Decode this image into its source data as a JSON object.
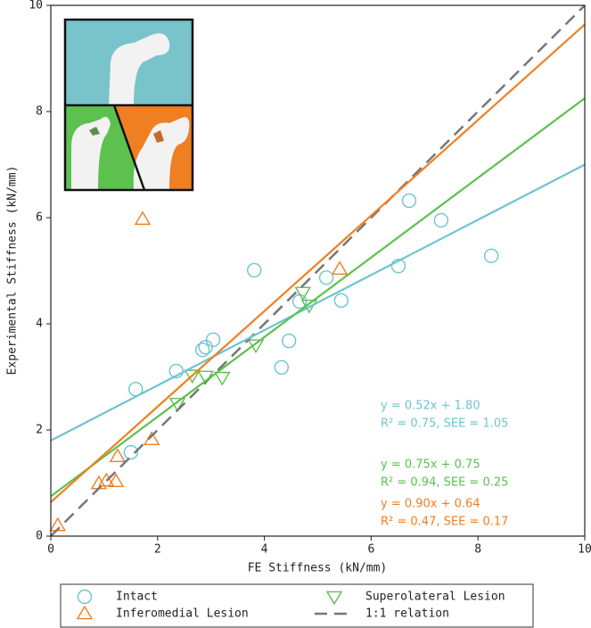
{
  "chart_data": {
    "type": "scatter",
    "xlabel": "FE Stiffness (kN/mm)",
    "ylabel": "Experimental Stiffness (kN/mm)",
    "xlim": [
      0,
      10
    ],
    "ylim": [
      0,
      10
    ],
    "xticks": [
      0,
      2,
      4,
      6,
      8,
      10
    ],
    "yticks": [
      0,
      2,
      4,
      6,
      8,
      10
    ],
    "series": [
      {
        "name": "Intact",
        "color": "#6cc5d0",
        "marker": "circle",
        "x": [
          1.5,
          1.59,
          2.35,
          2.84,
          2.9,
          3.04,
          3.81,
          4.32,
          4.46,
          4.66,
          5.16,
          5.44,
          6.51,
          6.71,
          7.31,
          8.25
        ],
        "values": [
          1.58,
          2.77,
          3.11,
          3.51,
          3.56,
          3.7,
          5.01,
          3.18,
          3.68,
          4.42,
          4.87,
          4.44,
          5.09,
          6.32,
          5.95,
          5.28
        ],
        "fit": {
          "x": [
            0,
            10
          ],
          "values": [
            1.8,
            7.0
          ]
        }
      },
      {
        "name": "Superolateral Lesion",
        "color": "#5cc14f",
        "marker": "triangle-down",
        "x": [
          2.37,
          2.65,
          2.9,
          3.21,
          3.84,
          4.72,
          4.84
        ],
        "values": [
          2.5,
          3.03,
          3.01,
          2.99,
          3.6,
          4.59,
          4.35
        ],
        "fit": {
          "x": [
            0,
            10
          ],
          "values": [
            0.75,
            8.25
          ]
        }
      },
      {
        "name": "Inferomedial Lesion",
        "color": "#f07f22",
        "marker": "triangle-up",
        "x": [
          0.13,
          0.9,
          1.04,
          1.22,
          1.25,
          1.89,
          1.72,
          5.41
        ],
        "values": [
          0.2,
          0.99,
          1.04,
          1.03,
          1.5,
          1.82,
          5.97,
          5.03
        ],
        "fit": {
          "x": [
            0,
            10
          ],
          "values": [
            0.64,
            9.64
          ]
        }
      }
    ],
    "reference": {
      "name": "1:1 relation",
      "color": "#777777",
      "dashed": true,
      "x": [
        0,
        10
      ],
      "values": [
        0,
        10
      ]
    },
    "annotations": [
      {
        "text": "y = 0.52x + 1.80",
        "color": "#6cc5d0"
      },
      {
        "text": "R² = 0.75,  SEE = 1.05",
        "color": "#6cc5d0"
      },
      {
        "text": "y = 0.75x + 0.75",
        "color": "#5cc14f"
      },
      {
        "text": "R² = 0.94,  SEE = 0.25",
        "color": "#5cc14f"
      },
      {
        "text": "y = 0.90x + 0.64",
        "color": "#f07f22"
      },
      {
        "text": "R² = 0.47,  SEE = 0.17",
        "color": "#f07f22"
      }
    ]
  }
}
